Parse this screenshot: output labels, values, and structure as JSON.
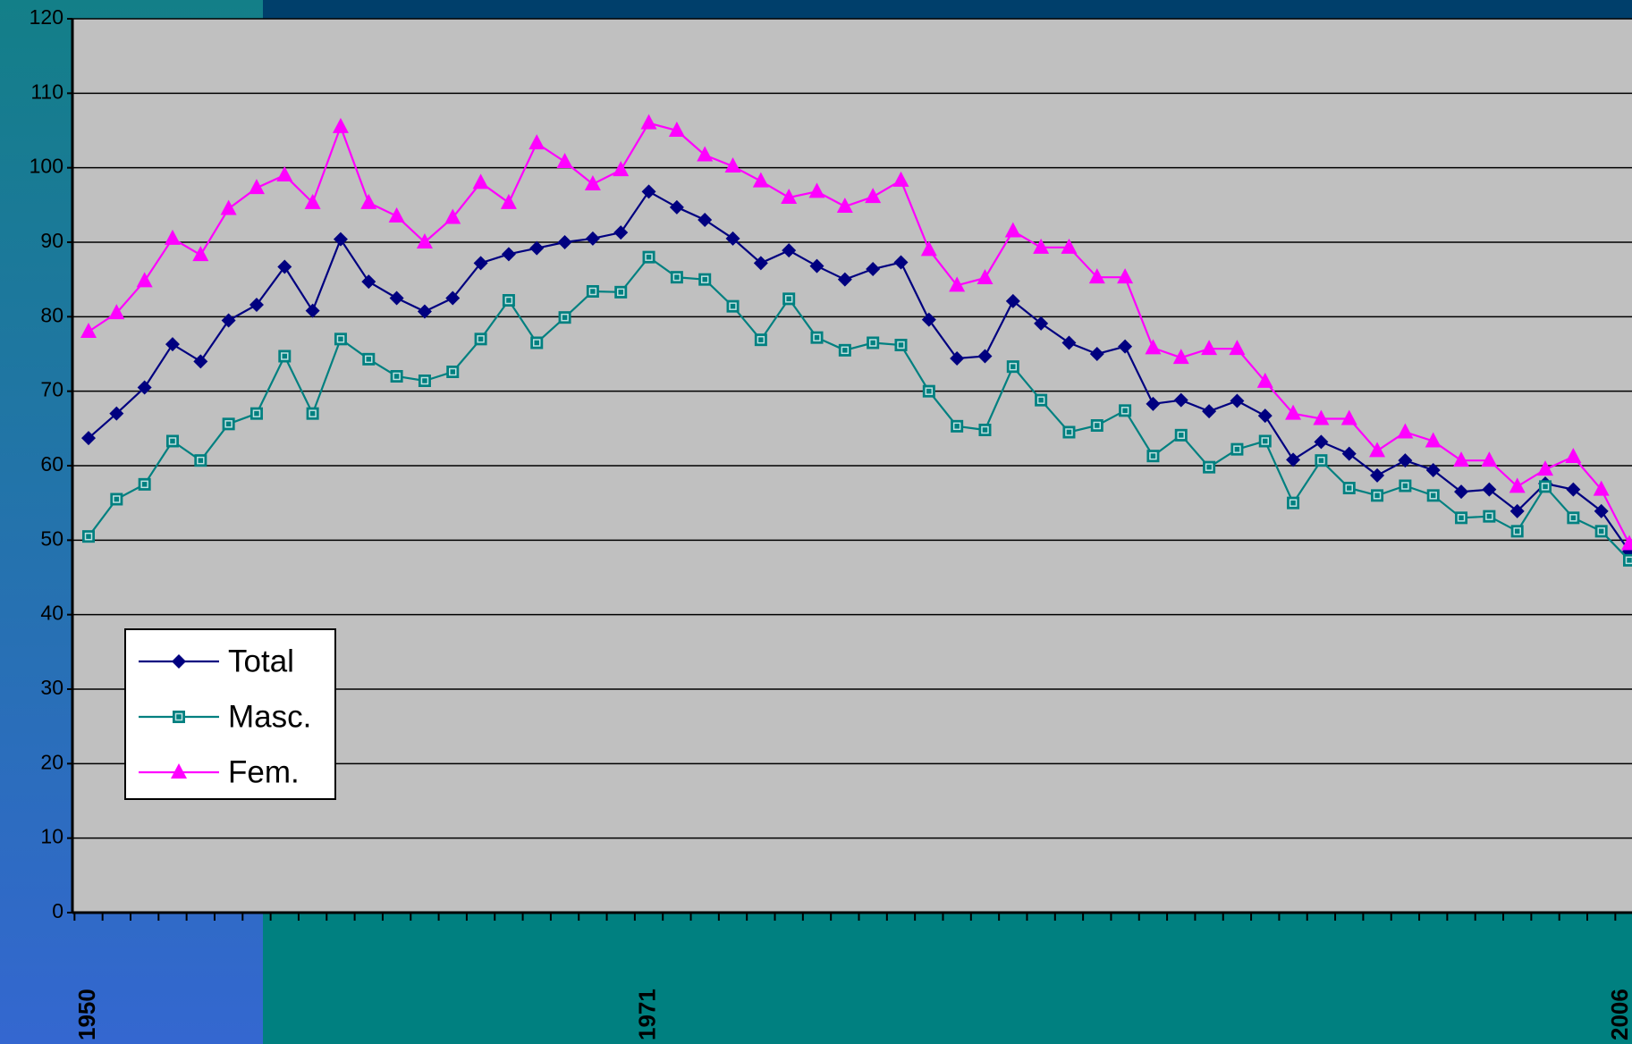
{
  "chart_data": {
    "type": "line",
    "categories": [
      "1950",
      null,
      null,
      null,
      null,
      null,
      null,
      null,
      null,
      null,
      null,
      null,
      null,
      null,
      null,
      null,
      null,
      null,
      null,
      null,
      "1971",
      null,
      null,
      null,
      null,
      null,
      null,
      null,
      null,
      null,
      null,
      null,
      null,
      null,
      null,
      null,
      null,
      null,
      null,
      null,
      null,
      null,
      null,
      null,
      null,
      null,
      null,
      null,
      null,
      null,
      null,
      null,
      null,
      null,
      null,
      "2006"
    ],
    "series": [
      {
        "name": "Total",
        "color": "#000080",
        "marker": "diamond",
        "values": [
          63.7,
          67,
          70.5,
          76.3,
          74,
          79.5,
          81.6,
          86.7,
          80.8,
          90.4,
          84.7,
          82.5,
          80.7,
          82.5,
          87.2,
          88.4,
          89.2,
          90,
          90.5,
          91.3,
          96.8,
          94.7,
          93,
          90.5,
          87.2,
          88.9,
          86.8,
          85,
          86.4,
          87.3,
          79.6,
          74.4,
          74.7,
          82.1,
          79.1,
          76.5,
          75,
          76,
          68.3,
          68.8,
          67.3,
          68.7,
          66.7,
          60.8,
          63.2,
          61.6,
          58.7,
          60.7,
          59.4,
          56.5,
          56.8,
          53.9,
          57.6,
          56.8,
          53.9,
          48.5
        ]
      },
      {
        "name": "Masc.",
        "color": "#008080",
        "marker": "square",
        "values": [
          50.5,
          55.5,
          57.5,
          63.3,
          60.7,
          65.6,
          67,
          74.7,
          67,
          77,
          74.3,
          72,
          71.4,
          72.6,
          77,
          82.2,
          76.5,
          79.9,
          83.4,
          83.3,
          88,
          85.3,
          85,
          81.4,
          76.9,
          82.4,
          77.2,
          75.5,
          76.5,
          76.2,
          70,
          65.3,
          64.8,
          73.3,
          68.8,
          64.5,
          65.4,
          67.4,
          61.3,
          64.1,
          59.8,
          62.2,
          63.3,
          55,
          60.7,
          57,
          56,
          57.3,
          56,
          53,
          53.2,
          51.2,
          57.2,
          53,
          51.2,
          47.3
        ]
      },
      {
        "name": "Fem.",
        "color": "#ff00ff",
        "marker": "triangle",
        "values": [
          78,
          80.5,
          84.8,
          90.5,
          88.3,
          94.5,
          97.3,
          99,
          95.3,
          105.5,
          95.3,
          93.5,
          90,
          93.3,
          98,
          95.3,
          103.3,
          100.8,
          97.8,
          99.7,
          106,
          105,
          101.7,
          100.2,
          98.2,
          96,
          96.8,
          94.8,
          96.1,
          98.3,
          89,
          84.2,
          85.2,
          91.5,
          89.3,
          89.3,
          85.3,
          85.3,
          75.8,
          74.5,
          75.7,
          75.7,
          71.3,
          67,
          66.3,
          66.3,
          62,
          64.5,
          63.3,
          60.7,
          60.7,
          57.2,
          59.5,
          61.2,
          56.8,
          49.5
        ]
      }
    ],
    "ylim": [
      0,
      120
    ],
    "yticks": [
      0,
      10,
      20,
      30,
      40,
      50,
      60,
      70,
      80,
      90,
      100,
      110,
      120
    ],
    "grid": true,
    "legend": "lower left"
  }
}
